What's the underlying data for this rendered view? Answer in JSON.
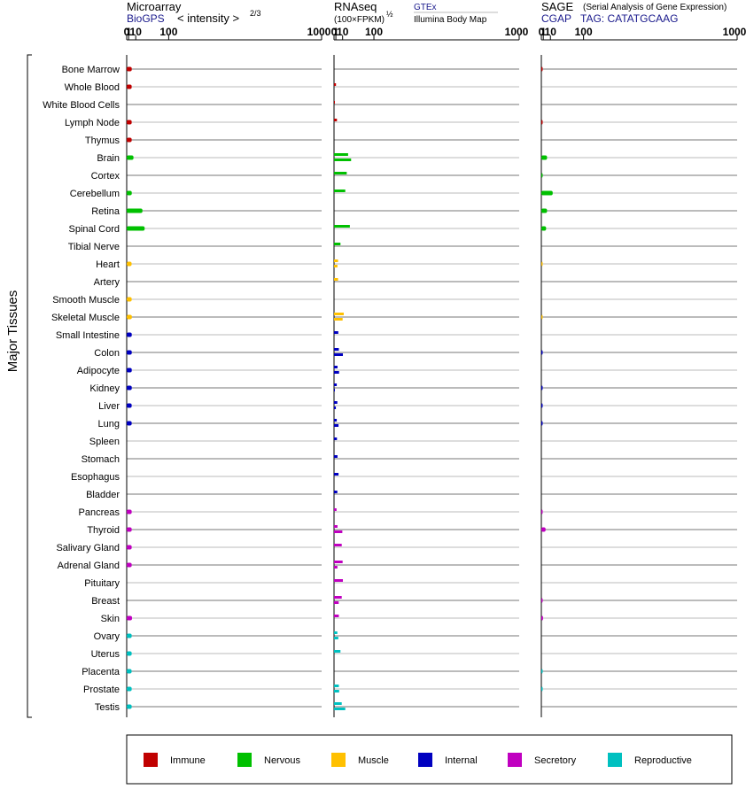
{
  "chart_data": {
    "type": "bar",
    "panels": [
      {
        "title": "Microarray",
        "source": "BioGPS",
        "axis_note": "< intensity >",
        "exponent": "2/3"
      },
      {
        "title": "RNAseq",
        "axis_note": "(100×FPKM)",
        "exponent": "½",
        "source": "GTEx",
        "source2": "Illumina Body Map"
      },
      {
        "title": "SAGE",
        "subtitle": "(Serial Analysis of Gene Expression)",
        "source": "CGAP",
        "tag": "TAG: CATATGCAAG"
      }
    ],
    "ticks": [
      "0",
      "1",
      "10",
      "100",
      "1000"
    ],
    "ylabel": "Major Tissues",
    "legend": [
      {
        "name": "Immune",
        "color": "#c00000"
      },
      {
        "name": "Nervous",
        "color": "#00c000"
      },
      {
        "name": "Muscle",
        "color": "#ffc000"
      },
      {
        "name": "Internal",
        "color": "#0000c0"
      },
      {
        "name": "Secretory",
        "color": "#c000c0"
      },
      {
        "name": "Reproductive",
        "color": "#00c0c0"
      }
    ],
    "tissues": [
      {
        "name": "Bone Marrow",
        "group": "Immune",
        "micro": 4.2,
        "rna": [],
        "sage": 0.2
      },
      {
        "name": "Whole Blood",
        "group": "Immune",
        "micro": 4.1,
        "rna": [
          1.1
        ],
        "sage": 0
      },
      {
        "name": "White Blood Cells",
        "group": "Immune",
        "micro": 0,
        "rna": [
          0.01
        ],
        "sage": 0
      },
      {
        "name": "Lymph Node",
        "group": "Immune",
        "micro": 4.1,
        "rna": [
          2.0
        ],
        "sage": 0.2
      },
      {
        "name": "Thymus",
        "group": "Immune",
        "micro": 4.1,
        "rna": [],
        "sage": 0
      },
      {
        "name": "Brain",
        "group": "Nervous",
        "micro": 6.5,
        "rna": [
          21,
          28
        ],
        "sage": 5.0
      },
      {
        "name": "Cortex",
        "group": "Nervous",
        "micro": 0,
        "rna": [
          18
        ],
        "sage": 0.05
      },
      {
        "name": "Cerebellum",
        "group": "Nervous",
        "micro": 4.2,
        "rna": [
          15
        ],
        "sage": 14
      },
      {
        "name": "Retina",
        "group": "Nervous",
        "micro": 23,
        "rna": [],
        "sage": 5.0
      },
      {
        "name": "Spinal Cord",
        "group": "Nervous",
        "micro": 28,
        "rna": [
          25
        ],
        "sage": 3.8
      },
      {
        "name": "Tibial Nerve",
        "group": "Nervous",
        "micro": 0,
        "rna": [
          6.5
        ],
        "sage": 0
      },
      {
        "name": "Heart",
        "group": "Muscle",
        "micro": 4.0,
        "rna": [
          3.2,
          2.5
        ],
        "sage": 0.02
      },
      {
        "name": "Artery",
        "group": "Muscle",
        "micro": 0,
        "rna": [
          3.2
        ],
        "sage": 0
      },
      {
        "name": "Smooth Muscle",
        "group": "Muscle",
        "micro": 4.1,
        "rna": [],
        "sage": 0
      },
      {
        "name": "Skeletal Muscle",
        "group": "Muscle",
        "micro": 4.3,
        "rna": [
          12,
          10
        ],
        "sage": 0.02
      },
      {
        "name": "Small Intestine",
        "group": "Internal",
        "micro": 4.2,
        "rna": [
          3.5
        ],
        "sage": 0
      },
      {
        "name": "Colon",
        "group": "Internal",
        "micro": 4.2,
        "rna": [
          4.2,
          10.5
        ],
        "sage": 0.15
      },
      {
        "name": "Adipocyte",
        "group": "Internal",
        "micro": 4.2,
        "rna": [
          2.6,
          4.5
        ],
        "sage": 0
      },
      {
        "name": "Kidney",
        "group": "Internal",
        "micro": 4.2,
        "rna": [
          1.8,
          0.02
        ],
        "sage": 0.15
      },
      {
        "name": "Liver",
        "group": "Internal",
        "micro": 4.1,
        "rna": [
          2.4,
          1.0
        ],
        "sage": 0.15
      },
      {
        "name": "Lung",
        "group": "Internal",
        "micro": 4.1,
        "rna": [
          1.8,
          3.8
        ],
        "sage": 0.15
      },
      {
        "name": "Spleen",
        "group": "Internal",
        "micro": 0,
        "rna": [
          2.0
        ],
        "sage": 0
      },
      {
        "name": "Stomach",
        "group": "Internal",
        "micro": 0,
        "rna": [
          2.6
        ],
        "sage": 0
      },
      {
        "name": "Esophagus",
        "group": "Internal",
        "micro": 0,
        "rna": [
          3.8
        ],
        "sage": 0
      },
      {
        "name": "Bladder",
        "group": "Internal",
        "micro": 0,
        "rna": [
          2.4
        ],
        "sage": 0
      },
      {
        "name": "Pancreas",
        "group": "Secretory",
        "micro": 4.1,
        "rna": [
          1.6
        ],
        "sage": 0.15
      },
      {
        "name": "Thyroid",
        "group": "Secretory",
        "micro": 4.1,
        "rna": [
          2.6,
          9.5
        ],
        "sage": 3.2
      },
      {
        "name": "Salivary Gland",
        "group": "Secretory",
        "micro": 4.1,
        "rna": [
          8.5
        ],
        "sage": 0
      },
      {
        "name": "Adrenal Gland",
        "group": "Secretory",
        "micro": 4.1,
        "rna": [
          10,
          2.5
        ],
        "sage": 0
      },
      {
        "name": "Pituitary",
        "group": "Secretory",
        "micro": 0,
        "rna": [
          10.5
        ],
        "sage": 0
      },
      {
        "name": "Breast",
        "group": "Secretory",
        "micro": 0,
        "rna": [
          8.5,
          4.0
        ],
        "sage": 0.15
      },
      {
        "name": "Skin",
        "group": "Secretory",
        "micro": 4.5,
        "rna": [
          4.2
        ],
        "sage": 0.8
      },
      {
        "name": "Ovary",
        "group": "Reproductive",
        "micro": 4.1,
        "rna": [
          2.4,
          3.5
        ],
        "sage": 0
      },
      {
        "name": "Uterus",
        "group": "Reproductive",
        "micro": 4.1,
        "rna": [
          6.5
        ],
        "sage": 0
      },
      {
        "name": "Placenta",
        "group": "Reproductive",
        "micro": 4.0,
        "rna": [],
        "sage": 0.05
      },
      {
        "name": "Prostate",
        "group": "Reproductive",
        "micro": 4.1,
        "rna": [
          4.2,
          4.6
        ],
        "sage": 0.05
      },
      {
        "name": "Testis",
        "group": "Reproductive",
        "micro": 4.1,
        "rna": [
          8.5,
          15
        ],
        "sage": 0
      }
    ]
  }
}
